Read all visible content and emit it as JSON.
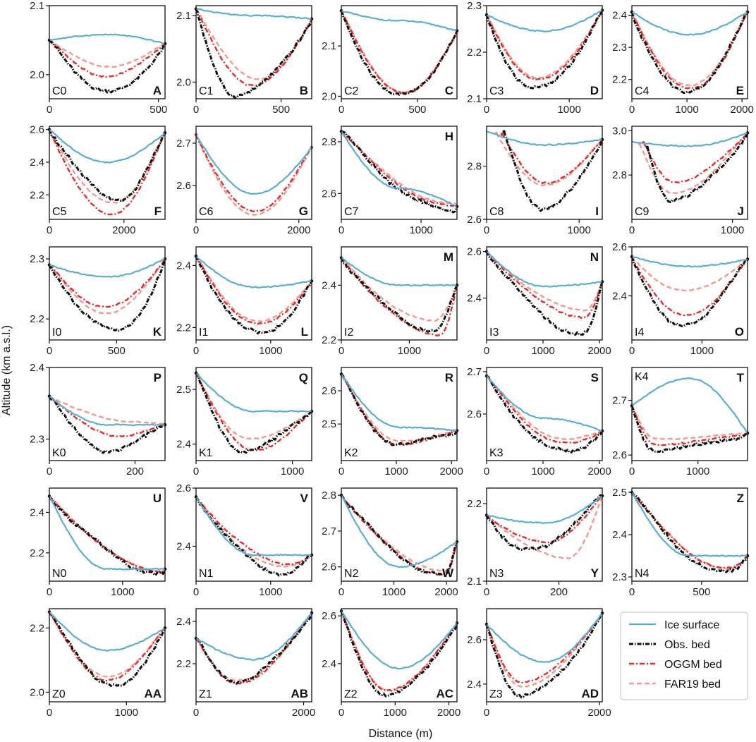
{
  "chart_data": {
    "type": "line",
    "xlabel": "Distance (m)",
    "ylabel": "Altitude (km a.s.l.)",
    "legend_position": "bottom-right",
    "legend": [
      {
        "name": "Ice surface",
        "color": "#5aaed3",
        "style": "solid"
      },
      {
        "name": "Obs. bed",
        "color": "#111111",
        "style": "dash-dot"
      },
      {
        "name": "OGGM bed",
        "color": "#e8282a",
        "style": "dash-dot"
      },
      {
        "name": "FAR19 bed",
        "color": "#f29a92",
        "style": "dashed"
      }
    ],
    "panels": [
      {
        "id": "A",
        "label": "C0",
        "label_pos": "bl",
        "xmax": 530,
        "xticks": [
          0,
          500
        ],
        "ylim": [
          1.965,
          2.1
        ],
        "yticks": [
          "2.0",
          "2.1"
        ],
        "yvals": [
          2.0,
          2.1
        ],
        "shape": {
          "start": 2.05,
          "end": 2.045,
          "surf": 2.058,
          "obs": 1.975,
          "oggm": 1.998,
          "far": 2.012,
          "obsPos": 0.55,
          "oggmPos": 0.5,
          "farPos": 0.52,
          "obsOff": 0
        }
      },
      {
        "id": "B",
        "label": "C1",
        "label_pos": "bl",
        "xmax": 680,
        "xticks": [
          0,
          500
        ],
        "ylim": [
          1.975,
          2.115
        ],
        "yticks": [
          "2.0",
          "2.1"
        ],
        "yvals": [
          2.0,
          2.1
        ],
        "shape": {
          "start": 2.11,
          "end": 2.095,
          "surf": 2.1,
          "obs": 1.98,
          "oggm": 1.995,
          "far": 2.005,
          "obsPos": 0.35,
          "oggmPos": 0.5,
          "farPos": 0.55,
          "obsOff": 0
        }
      },
      {
        "id": "C",
        "label": "C2",
        "label_pos": "bl",
        "xmax": 760,
        "xticks": [
          0,
          500
        ],
        "ylim": [
          1.995,
          2.18
        ],
        "yticks": [
          "2.0",
          "2.1"
        ],
        "yvals": [
          2.0,
          2.1
        ],
        "shape": {
          "start": 2.17,
          "end": 2.13,
          "surf": 2.15,
          "obs": 2.0,
          "oggm": 2.005,
          "far": 2.008,
          "obsPos": 0.5,
          "oggmPos": 0.55,
          "farPos": 0.55,
          "obsOff": 0
        }
      },
      {
        "id": "D",
        "label": "C3",
        "label_pos": "bl",
        "xmax": 1400,
        "xticks": [
          0,
          1000
        ],
        "ylim": [
          2.1,
          2.3
        ],
        "yticks": [
          "2.1",
          "2.2",
          "2.3"
        ],
        "yvals": [
          2.1,
          2.2,
          2.3
        ],
        "shape": {
          "start": 2.28,
          "end": 2.29,
          "surf": 2.245,
          "obs": 2.12,
          "oggm": 2.14,
          "far": 2.145,
          "obsPos": 0.4,
          "oggmPos": 0.45,
          "farPos": 0.45,
          "obsOff": 0
        }
      },
      {
        "id": "E",
        "label": "C4",
        "label_pos": "bl",
        "xmax": 2100,
        "xticks": [
          0,
          1000,
          2000
        ],
        "ylim": [
          2.14,
          2.43
        ],
        "yticks": [
          "2.2",
          "2.3",
          "2.4"
        ],
        "yvals": [
          2.2,
          2.3,
          2.4
        ],
        "shape": {
          "start": 2.41,
          "end": 2.41,
          "surf": 2.34,
          "obs": 2.16,
          "oggm": 2.17,
          "far": 2.18,
          "obsPos": 0.45,
          "oggmPos": 0.5,
          "farPos": 0.5,
          "obsOff": 0
        }
      },
      {
        "id": "F",
        "label": "C5",
        "label_pos": "bl",
        "xmax": 3100,
        "xticks": [
          0,
          2000
        ],
        "ylim": [
          2.05,
          2.62
        ],
        "yticks": [
          "2.2",
          "2.4",
          "2.6"
        ],
        "yvals": [
          2.2,
          2.4,
          2.6
        ],
        "shape": {
          "start": 2.6,
          "end": 2.58,
          "surf": 2.4,
          "obs": 2.18,
          "oggm": 2.08,
          "far": 2.15,
          "obsPos": 0.6,
          "oggmPos": 0.53,
          "farPos": 0.55,
          "obsOff": 0
        }
      },
      {
        "id": "G",
        "label": "C6",
        "label_pos": "bl",
        "xmax": 2250,
        "xticks": [
          0,
          2000
        ],
        "ylim": [
          2.52,
          2.74
        ],
        "yticks": [
          "2.6",
          "2.7"
        ],
        "yvals": [
          2.6,
          2.7
        ],
        "shape": {
          "start": 2.72,
          "end": 2.69,
          "surf": 2.58,
          "obs": null,
          "oggm": 2.54,
          "far": 2.53,
          "obsPos": 0.5,
          "oggmPos": 0.5,
          "farPos": 0.5,
          "obsOff": 0
        }
      },
      {
        "id": "H",
        "label": "C7",
        "label_pos": "bl",
        "xmax": 1450,
        "xticks": [
          0,
          1000
        ],
        "ylim": [
          2.5,
          2.86
        ],
        "yticks": [
          "2.6",
          "2.8"
        ],
        "yvals": [
          2.6,
          2.8
        ],
        "shape": {
          "start": 2.84,
          "end": 2.55,
          "surf": 2.62,
          "obs": 2.53,
          "oggm": 2.55,
          "far": 2.56,
          "obsPos": 0.99,
          "oggmPos": 0.99,
          "farPos": 0.99,
          "obsOff": 0
        }
      },
      {
        "id": "I",
        "label": "C8",
        "label_pos": "bl",
        "xmax": 1250,
        "xticks": [
          0,
          1000
        ],
        "ylim": [
          2.6,
          2.95
        ],
        "yticks": [
          "2.6",
          "2.8"
        ],
        "yvals": [
          2.6,
          2.8
        ],
        "shape": {
          "start": 2.93,
          "end": 2.9,
          "surf": 2.88,
          "obs": 2.64,
          "oggm": 2.74,
          "far": 2.73,
          "obsPos": 0.4,
          "oggmPos": 0.45,
          "farPos": 0.45,
          "obsOff": 0.15
        }
      },
      {
        "id": "J",
        "label": "C9",
        "label_pos": "bl",
        "xmax": 1150,
        "xticks": [
          0,
          1000
        ],
        "ylim": [
          2.6,
          3.02
        ],
        "yticks": [
          "2.8",
          "3.0"
        ],
        "yvals": [
          2.8,
          3.0
        ],
        "shape": {
          "start": 2.95,
          "end": 2.99,
          "surf": 2.93,
          "obs": 2.69,
          "oggm": 2.77,
          "far": 2.72,
          "obsPos": 0.25,
          "oggmPos": 0.3,
          "farPos": 0.3,
          "obsOff": 0.12
        }
      },
      {
        "id": "K",
        "label": "I0",
        "label_pos": "bl",
        "xmax": 860,
        "xticks": [
          0,
          500
        ],
        "ylim": [
          2.165,
          2.32
        ],
        "yticks": [
          "2.2",
          "2.3"
        ],
        "yvals": [
          2.2,
          2.3
        ],
        "shape": {
          "start": 2.29,
          "end": 2.3,
          "surf": 2.27,
          "obs": 2.18,
          "oggm": 2.22,
          "far": 2.21,
          "obsPos": 0.6,
          "oggmPos": 0.5,
          "farPos": 0.5,
          "obsOff": 0
        }
      },
      {
        "id": "L",
        "label": "I1",
        "label_pos": "bl",
        "xmax": 1550,
        "xticks": [
          0,
          1000
        ],
        "ylim": [
          2.16,
          2.46
        ],
        "yticks": [
          "2.2",
          "2.4"
        ],
        "yvals": [
          2.2,
          2.4
        ],
        "shape": {
          "start": 2.43,
          "end": 2.35,
          "surf": 2.33,
          "obs": 2.18,
          "oggm": 2.21,
          "far": 2.22,
          "obsPos": 0.55,
          "oggmPos": 0.55,
          "farPos": 0.55,
          "obsOff": 0
        }
      },
      {
        "id": "M",
        "label": "I2",
        "label_pos": "bl",
        "xmax": 1700,
        "xticks": [
          0,
          1000
        ],
        "ylim": [
          2.2,
          2.54
        ],
        "yticks": [
          "2.2",
          "2.4"
        ],
        "yvals": [
          2.2,
          2.4
        ],
        "shape": {
          "start": 2.5,
          "end": 2.4,
          "surf": 2.4,
          "obs": 2.24,
          "oggm": 2.22,
          "far": 2.27,
          "obsPos": 0.8,
          "oggmPos": 0.85,
          "farPos": 0.8,
          "obsOff": 0
        }
      },
      {
        "id": "N",
        "label": "I3",
        "label_pos": "bl",
        "xmax": 2050,
        "xticks": [
          0,
          1000,
          2000
        ],
        "ylim": [
          2.22,
          2.62
        ],
        "yticks": [
          "2.4",
          "2.6"
        ],
        "yvals": [
          2.4,
          2.6
        ],
        "shape": {
          "start": 2.6,
          "end": 2.47,
          "surf": 2.45,
          "obs": 2.25,
          "oggm": 2.32,
          "far": 2.35,
          "obsPos": 0.85,
          "oggmPos": 0.85,
          "farPos": 0.85,
          "obsOff": 0
        }
      },
      {
        "id": "O",
        "label": "I4",
        "label_pos": "bl",
        "xmax": 1650,
        "xticks": [
          0,
          1000
        ],
        "ylim": [
          2.22,
          2.6
        ],
        "yticks": [
          "2.4",
          "2.6"
        ],
        "yvals": [
          2.4,
          2.6
        ],
        "shape": {
          "start": 2.56,
          "end": 2.55,
          "surf": 2.52,
          "obs": 2.28,
          "oggm": 2.32,
          "far": 2.42,
          "obsPos": 0.4,
          "oggmPos": 0.45,
          "farPos": 0.45,
          "obsOff": 0
        }
      },
      {
        "id": "P",
        "label": "K0",
        "label_pos": "bl",
        "xmax": 270,
        "xticks": [
          0,
          200
        ],
        "ylim": [
          2.27,
          2.4
        ],
        "yticks": [
          "2.3",
          "2.4"
        ],
        "yvals": [
          2.3,
          2.4
        ],
        "shape": {
          "start": 2.36,
          "end": 2.32,
          "surf": 2.32,
          "obs": 2.285,
          "oggm": 2.305,
          "far": 2.325,
          "obsPos": 0.5,
          "oggmPos": 0.6,
          "farPos": 0.7,
          "obsOff": 0
        }
      },
      {
        "id": "Q",
        "label": "K1",
        "label_pos": "bl",
        "xmax": 1200,
        "xticks": [
          0,
          1000
        ],
        "ylim": [
          2.37,
          2.54
        ],
        "yticks": [
          "2.4",
          "2.5"
        ],
        "yvals": [
          2.4,
          2.5
        ],
        "shape": {
          "start": 2.53,
          "end": 2.46,
          "surf": 2.46,
          "obs": 2.39,
          "oggm": 2.39,
          "far": 2.41,
          "obsPos": 0.4,
          "oggmPos": 0.5,
          "farPos": 0.45,
          "obsOff": 0
        }
      },
      {
        "id": "R",
        "label": "K2",
        "label_pos": "bl",
        "xmax": 2100,
        "xticks": [
          0,
          1000,
          2000
        ],
        "ylim": [
          2.39,
          2.67
        ],
        "yticks": [
          "2.5",
          "2.6"
        ],
        "yvals": [
          2.5,
          2.6
        ],
        "shape": {
          "start": 2.65,
          "end": 2.48,
          "surf": 2.49,
          "obs": 2.44,
          "oggm": 2.44,
          "far": 2.45,
          "obsPos": 0.5,
          "oggmPos": 0.5,
          "farPos": 0.5,
          "obsOff": 0
        }
      },
      {
        "id": "S",
        "label": "K3",
        "label_pos": "bl",
        "xmax": 2050,
        "xticks": [
          0,
          1000,
          2000
        ],
        "ylim": [
          2.49,
          2.71
        ],
        "yticks": [
          "2.6",
          "2.7"
        ],
        "yvals": [
          2.6,
          2.7
        ],
        "shape": {
          "start": 2.69,
          "end": 2.56,
          "surf": 2.59,
          "obs": 2.51,
          "oggm": 2.53,
          "far": 2.54,
          "obsPos": 0.7,
          "oggmPos": 0.7,
          "farPos": 0.7,
          "obsOff": 0
        }
      },
      {
        "id": "T",
        "label": "K4",
        "label_pos": "tl",
        "xmax": 1750,
        "xticks": [
          0,
          1000
        ],
        "ylim": [
          2.59,
          2.76
        ],
        "yticks": [
          "2.6",
          "2.7"
        ],
        "yvals": [
          2.6,
          2.7
        ],
        "shape": {
          "start": 2.69,
          "end": 2.64,
          "surf": 2.74,
          "obs": 2.61,
          "oggm": 2.62,
          "far": 2.63,
          "obsPos": 0.2,
          "oggmPos": 0.2,
          "farPos": 0.2,
          "obsOff": 0
        }
      },
      {
        "id": "U",
        "label": "N0",
        "label_pos": "bl",
        "xmax": 1580,
        "xticks": [
          0,
          1000
        ],
        "ylim": [
          2.06,
          2.52
        ],
        "yticks": [
          "2.2",
          "2.4"
        ],
        "yvals": [
          2.2,
          2.4
        ],
        "shape": {
          "start": 2.48,
          "end": 2.12,
          "surf": 2.12,
          "obs": 2.1,
          "oggm": 2.11,
          "far": 2.11,
          "obsPos": 0.99,
          "oggmPos": 0.99,
          "farPos": 0.99,
          "obsOff": 0
        }
      },
      {
        "id": "V",
        "label": "N1",
        "label_pos": "bl",
        "xmax": 1550,
        "xticks": [
          0,
          1000
        ],
        "ylim": [
          2.28,
          2.6
        ],
        "yticks": [
          "2.4",
          "2.6"
        ],
        "yvals": [
          2.4,
          2.6
        ],
        "shape": {
          "start": 2.57,
          "end": 2.37,
          "surf": 2.37,
          "obs": 2.31,
          "oggm": 2.34,
          "far": 2.33,
          "obsPos": 0.75,
          "oggmPos": 0.8,
          "farPos": 0.75,
          "obsOff": 0
        }
      },
      {
        "id": "W",
        "label": "N2",
        "label_pos": "bl",
        "xmax": 2200,
        "xticks": [
          0,
          1000,
          2000
        ],
        "ylim": [
          2.56,
          2.82
        ],
        "yticks": [
          "2.6",
          "2.7",
          "2.8"
        ],
        "yvals": [
          2.6,
          2.7,
          2.8
        ],
        "shape": {
          "start": 2.8,
          "end": 2.67,
          "surf": 2.6,
          "obs": 2.58,
          "oggm": 2.58,
          "far": 2.59,
          "obsPos": 0.9,
          "oggmPos": 0.9,
          "farPos": 0.9,
          "obsOff": 0
        }
      },
      {
        "id": "Y",
        "label": "N3",
        "label_pos": "bl",
        "xmax": 320,
        "xticks": [
          0,
          200
        ],
        "ylim": [
          2.1,
          2.22
        ],
        "yticks": [
          "2.1",
          "2.2"
        ],
        "yvals": [
          2.1,
          2.2
        ],
        "shape": {
          "start": 2.185,
          "end": 2.21,
          "surf": 2.175,
          "obs": 2.14,
          "oggm": 2.15,
          "far": 2.13,
          "obsPos": 0.3,
          "oggmPos": 0.5,
          "farPos": 0.7,
          "obsOff": 0
        }
      },
      {
        "id": "Z",
        "label": "N4",
        "label_pos": "bl",
        "xmax": 830,
        "xticks": [
          0,
          500
        ],
        "ylim": [
          2.29,
          2.51
        ],
        "yticks": [
          "2.3",
          "2.4",
          "2.5"
        ],
        "yvals": [
          2.3,
          2.4,
          2.5
        ],
        "shape": {
          "start": 2.5,
          "end": 2.35,
          "surf": 2.35,
          "obs": 2.31,
          "oggm": 2.32,
          "far": 2.32,
          "obsPos": 0.85,
          "oggmPos": 0.85,
          "farPos": 0.85,
          "obsOff": 0
        }
      },
      {
        "id": "AA",
        "label": "Z0",
        "label_pos": "bl",
        "xmax": 1500,
        "xticks": [
          0,
          1000
        ],
        "ylim": [
          1.97,
          2.26
        ],
        "yticks": [
          "2.0",
          "2.2"
        ],
        "yvals": [
          2.0,
          2.2
        ],
        "shape": {
          "start": 2.25,
          "end": 2.2,
          "surf": 2.13,
          "obs": 2.02,
          "oggm": 2.04,
          "far": 2.05,
          "obsPos": 0.6,
          "oggmPos": 0.5,
          "farPos": 0.5,
          "obsOff": 0
        }
      },
      {
        "id": "AB",
        "label": "Z1",
        "label_pos": "bl",
        "xmax": 2150,
        "xticks": [
          0,
          2000
        ],
        "ylim": [
          2.02,
          2.46
        ],
        "yticks": [
          "2.2",
          "2.4"
        ],
        "yvals": [
          2.2,
          2.4
        ],
        "shape": {
          "start": 2.32,
          "end": 2.44,
          "surf": 2.22,
          "obs": 2.12,
          "oggm": 2.11,
          "far": 2.12,
          "obsPos": 0.35,
          "oggmPos": 0.35,
          "farPos": 0.35,
          "obsOff": 0
        }
      },
      {
        "id": "AC",
        "label": "Z2",
        "label_pos": "bl",
        "xmax": 2150,
        "xticks": [
          0,
          1000,
          2000
        ],
        "ylim": [
          2.24,
          2.63
        ],
        "yticks": [
          "2.4",
          "2.6"
        ],
        "yvals": [
          2.4,
          2.6
        ],
        "shape": {
          "start": 2.62,
          "end": 2.57,
          "surf": 2.38,
          "obs": 2.27,
          "oggm": 2.29,
          "far": 2.29,
          "obsPos": 0.4,
          "oggmPos": 0.4,
          "farPos": 0.4,
          "obsOff": 0
        }
      },
      {
        "id": "AD",
        "label": "Z3",
        "label_pos": "bl",
        "xmax": 2050,
        "xticks": [
          0,
          2000
        ],
        "ylim": [
          2.32,
          2.74
        ],
        "yticks": [
          "2.4",
          "2.6"
        ],
        "yvals": [
          2.4,
          2.6
        ],
        "shape": {
          "start": 2.67,
          "end": 2.72,
          "surf": 2.5,
          "obs": 2.35,
          "oggm": 2.41,
          "far": 2.39,
          "obsPos": 0.3,
          "oggmPos": 0.3,
          "farPos": 0.3,
          "obsOff": 0
        }
      }
    ]
  }
}
